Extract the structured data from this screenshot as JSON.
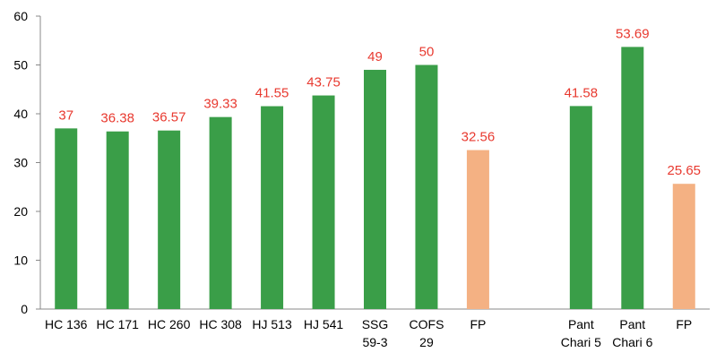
{
  "chart_data": {
    "type": "bar",
    "categories": [
      "HC 136",
      "HC 171",
      "HC 260",
      "HC 308",
      "HJ 513",
      "HJ 541",
      "SSG\n59-3",
      "COFS\n29",
      "FP",
      null,
      "Pant\nChari 5",
      "Pant\nChari 6",
      "FP"
    ],
    "values": [
      37,
      36.38,
      36.57,
      39.33,
      41.55,
      43.75,
      49,
      50,
      32.56,
      null,
      41.58,
      53.69,
      25.65
    ],
    "colors": [
      "#3a9e48",
      "#3a9e48",
      "#3a9e48",
      "#3a9e48",
      "#3a9e48",
      "#3a9e48",
      "#3a9e48",
      "#3a9e48",
      "#f4b183",
      null,
      "#3a9e48",
      "#3a9e48",
      "#f4b183"
    ],
    "label_color": "#e8392f",
    "ylim": [
      0,
      60
    ],
    "yticks": [
      0,
      10,
      20,
      30,
      40,
      50,
      60
    ],
    "grid": false
  }
}
